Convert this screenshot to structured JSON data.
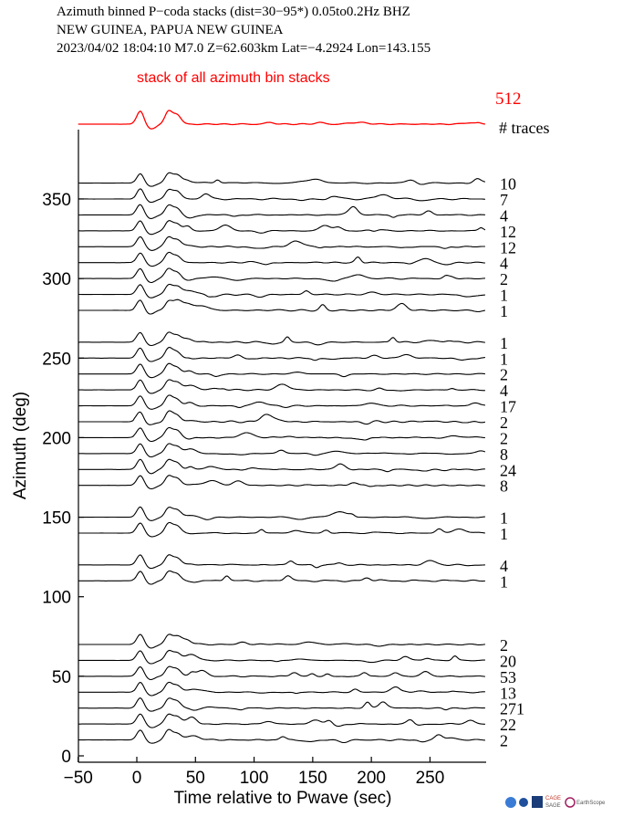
{
  "header": {
    "line1": "Azimuth binned P−coda stacks (dist=30−95*)  0.05to0.2Hz  BHZ",
    "line2": "NEW GUINEA, PAPUA NEW GUINEA",
    "line3": "2023/04/02  18:04:10  M7.0  Z=62.603km Lat=−4.2924 Lon=143.155"
  },
  "colors": {
    "stack": "#ff0000",
    "trace": "#000000"
  },
  "logos": [
    "logo-globe-icon",
    "logo-nsf-icon",
    "CAGE SAGE",
    "EarthScope"
  ],
  "chart_data": {
    "type": "line",
    "xlabel": "Time relative to Pwave (sec)",
    "ylabel": "Azimuth (deg)",
    "xlim": [
      -50,
      300
    ],
    "ylim": [
      0,
      380
    ],
    "xticks": [
      -50,
      0,
      50,
      100,
      150,
      200,
      250
    ],
    "xtick_labels": [
      "−50",
      "0",
      "50",
      "100",
      "150",
      "200",
      "250"
    ],
    "yticks": [
      0,
      50,
      100,
      150,
      200,
      250,
      300,
      350
    ],
    "stack": {
      "title": "stack of all azimuth bin stacks",
      "count": "512"
    },
    "count_header": "# traces",
    "traces": [
      {
        "azimuth": 360,
        "count": "10"
      },
      {
        "azimuth": 350,
        "count": "7"
      },
      {
        "azimuth": 340,
        "count": "4"
      },
      {
        "azimuth": 330,
        "count": "12"
      },
      {
        "azimuth": 320,
        "count": "12"
      },
      {
        "azimuth": 310,
        "count": "4"
      },
      {
        "azimuth": 300,
        "count": "2"
      },
      {
        "azimuth": 290,
        "count": "1"
      },
      {
        "azimuth": 280,
        "count": "1"
      },
      {
        "azimuth": 260,
        "count": "1"
      },
      {
        "azimuth": 250,
        "count": "1"
      },
      {
        "azimuth": 240,
        "count": "2"
      },
      {
        "azimuth": 230,
        "count": "4"
      },
      {
        "azimuth": 220,
        "count": "17"
      },
      {
        "azimuth": 210,
        "count": "2"
      },
      {
        "azimuth": 200,
        "count": "2"
      },
      {
        "azimuth": 190,
        "count": "8"
      },
      {
        "azimuth": 180,
        "count": "24"
      },
      {
        "azimuth": 170,
        "count": "8"
      },
      {
        "azimuth": 150,
        "count": "1"
      },
      {
        "azimuth": 140,
        "count": "1"
      },
      {
        "azimuth": 120,
        "count": "4"
      },
      {
        "azimuth": 110,
        "count": "1"
      },
      {
        "azimuth": 70,
        "count": "2"
      },
      {
        "azimuth": 60,
        "count": "20"
      },
      {
        "azimuth": 50,
        "count": "53"
      },
      {
        "azimuth": 40,
        "count": "13"
      },
      {
        "azimuth": 30,
        "count": "271"
      },
      {
        "azimuth": 20,
        "count": "22"
      },
      {
        "azimuth": 10,
        "count": "2"
      }
    ]
  }
}
